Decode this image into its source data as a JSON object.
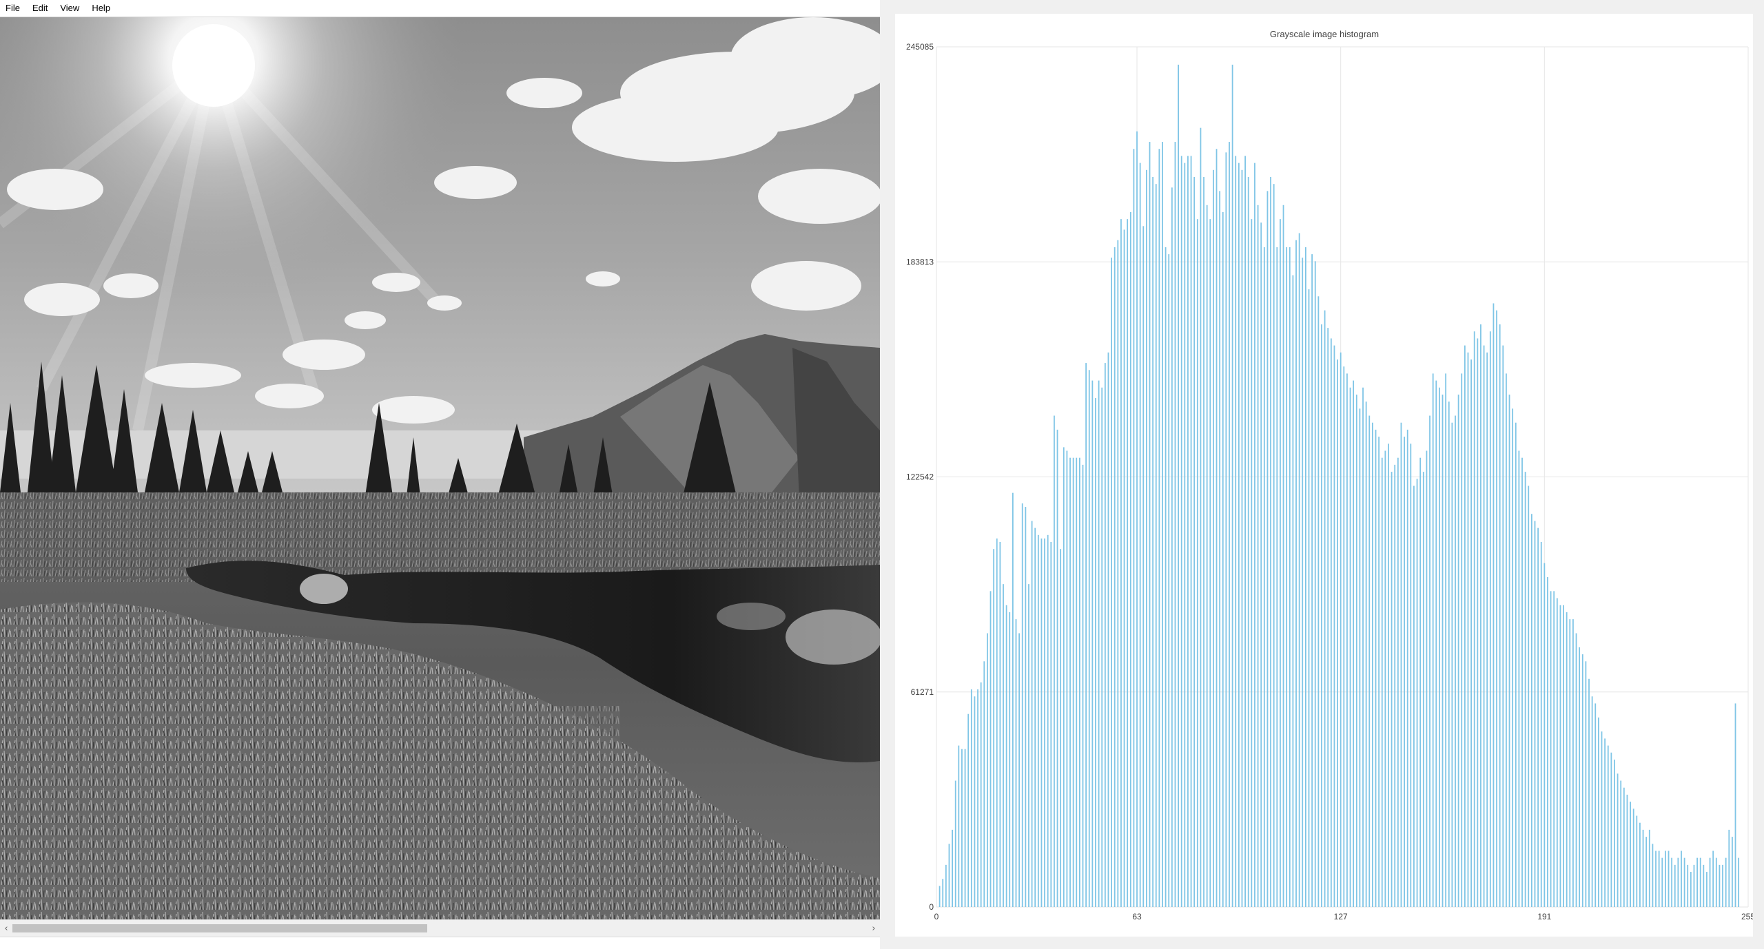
{
  "menu": {
    "items": [
      {
        "label": "File"
      },
      {
        "label": "Edit"
      },
      {
        "label": "View"
      },
      {
        "label": "Help"
      }
    ]
  },
  "viewer": {
    "image_description_icon": "grayscale-landscape-photo",
    "scrollbar": {
      "left_arrow": "‹",
      "right_arrow": "›",
      "thumb_fraction_start": 0.0,
      "thumb_fraction_size": 0.48
    }
  },
  "colors": {
    "bar": "#7fc5e6",
    "grid": "#e6e6e6",
    "panel_bg": "#f0f0f0"
  },
  "chart_data": {
    "type": "bar",
    "title": "Grayscale image histogram",
    "xlabel": "",
    "ylabel": "",
    "xlim": [
      0,
      255
    ],
    "ylim": [
      0,
      245085
    ],
    "x_ticks": [
      "0",
      "63",
      "127",
      "191",
      "255"
    ],
    "y_ticks": [
      "0",
      "61271",
      "122542",
      "183813",
      "245085"
    ],
    "grid": true,
    "values": [
      0,
      6000,
      8000,
      12000,
      18000,
      22000,
      36000,
      46000,
      45000,
      45000,
      55000,
      62000,
      60000,
      62000,
      64000,
      70000,
      78000,
      90000,
      102000,
      105000,
      104000,
      92000,
      86000,
      84000,
      118000,
      82000,
      78000,
      115000,
      114000,
      92000,
      110000,
      108000,
      106000,
      105000,
      105000,
      106000,
      104000,
      140000,
      136000,
      102000,
      131000,
      130000,
      128000,
      128000,
      128000,
      128000,
      126000,
      155000,
      153000,
      150000,
      145000,
      150000,
      148000,
      155000,
      158000,
      185000,
      188000,
      190000,
      196000,
      193000,
      196000,
      198000,
      216000,
      221000,
      212000,
      194000,
      210000,
      218000,
      208000,
      206000,
      216000,
      218000,
      188000,
      186000,
      205000,
      218000,
      240000,
      214000,
      212000,
      214000,
      214000,
      208000,
      196000,
      222000,
      208000,
      200000,
      196000,
      210000,
      216000,
      204000,
      198000,
      215000,
      218000,
      240000,
      214000,
      212000,
      210000,
      214000,
      208000,
      196000,
      212000,
      200000,
      195000,
      188000,
      204000,
      208000,
      206000,
      188000,
      196000,
      200000,
      188000,
      188000,
      180000,
      190000,
      192000,
      185000,
      188000,
      176000,
      186000,
      184000,
      174000,
      166000,
      170000,
      165000,
      162000,
      160000,
      156000,
      158000,
      154000,
      152000,
      148000,
      150000,
      146000,
      142000,
      148000,
      144000,
      140000,
      138000,
      136000,
      134000,
      128000,
      130000,
      132000,
      124000,
      126000,
      128000,
      138000,
      134000,
      136000,
      132000,
      120000,
      122000,
      128000,
      124000,
      130000,
      140000,
      152000,
      150000,
      148000,
      146000,
      152000,
      144000,
      138000,
      140000,
      146000,
      152000,
      160000,
      158000,
      156000,
      164000,
      162000,
      166000,
      160000,
      158000,
      164000,
      172000,
      170000,
      166000,
      160000,
      152000,
      146000,
      142000,
      138000,
      130000,
      128000,
      124000,
      120000,
      112000,
      110000,
      108000,
      104000,
      98000,
      94000,
      90000,
      90000,
      88000,
      86000,
      86000,
      84000,
      82000,
      82000,
      78000,
      74000,
      72000,
      70000,
      65000,
      60000,
      58000,
      54000,
      50000,
      48000,
      46000,
      44000,
      42000,
      38000,
      36000,
      34000,
      32000,
      30000,
      28000,
      26000,
      24000,
      22000,
      20000,
      22000,
      18000,
      16000,
      16000,
      14000,
      16000,
      16000,
      14000,
      12000,
      14000,
      16000,
      14000,
      12000,
      10000,
      12000,
      14000,
      14000,
      12000,
      10000,
      14000,
      16000,
      14000,
      12000,
      12000,
      14000,
      22000,
      20000,
      58000,
      14000
    ]
  }
}
